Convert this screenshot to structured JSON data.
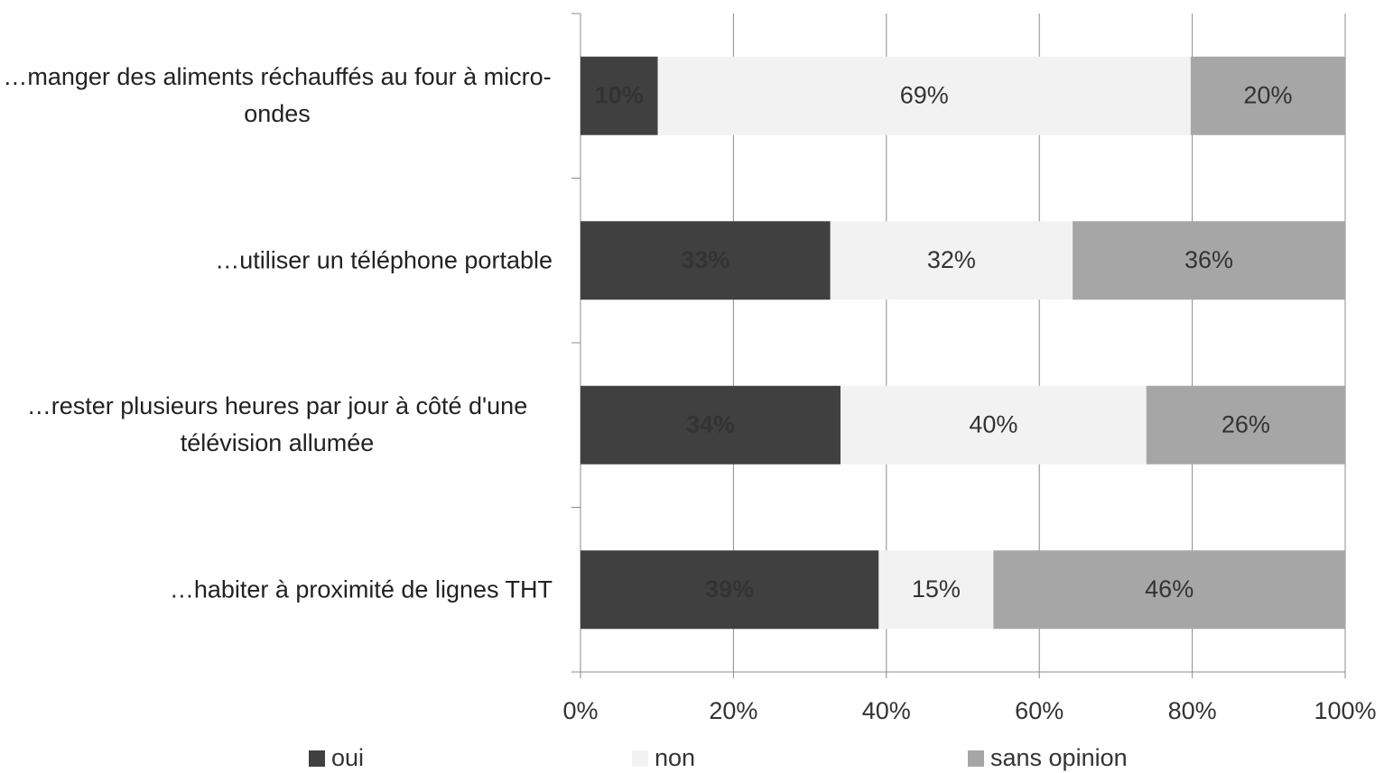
{
  "chart_data": {
    "type": "bar",
    "orientation": "horizontal",
    "stacking": "percent",
    "categories": [
      "…manger des aliments réchauffés au four à micro-ondes",
      "…utiliser un téléphone portable",
      "…rester plusieurs heures par jour à côté d'une télévision allumée",
      "…habiter à proximité de lignes THT"
    ],
    "series": [
      {
        "name": "oui",
        "color": "#404040",
        "values": [
          10,
          33,
          34,
          39
        ],
        "value_labels": [
          "10%",
          "33%",
          "34%",
          "39%"
        ]
      },
      {
        "name": "non",
        "color": "#f2f2f2",
        "values": [
          69,
          32,
          40,
          15
        ],
        "value_labels": [
          "69%",
          "32%",
          "40%",
          "15%"
        ]
      },
      {
        "name": "sans opinion",
        "color": "#a6a6a6",
        "values": [
          20,
          36,
          26,
          46
        ],
        "value_labels": [
          "20%",
          "36%",
          "26%",
          "46%"
        ]
      }
    ],
    "xlim": [
      0,
      100
    ],
    "xticks": [
      {
        "value": 0,
        "label": "0%"
      },
      {
        "value": 20,
        "label": "20%"
      },
      {
        "value": 40,
        "label": "40%"
      },
      {
        "value": 60,
        "label": "60%"
      },
      {
        "value": 80,
        "label": "80%"
      },
      {
        "value": 100,
        "label": "100%"
      }
    ],
    "grid": true,
    "legend": "bottom"
  }
}
